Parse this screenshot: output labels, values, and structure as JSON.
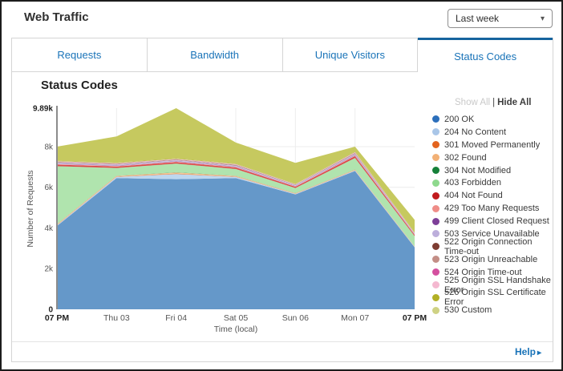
{
  "window": {
    "title": "Web Traffic"
  },
  "controls": {
    "time_range": {
      "value": "Last week"
    }
  },
  "tabs": [
    {
      "label": "Requests",
      "active": false
    },
    {
      "label": "Bandwidth",
      "active": false
    },
    {
      "label": "Unique Visitors",
      "active": false
    },
    {
      "label": "Status Codes",
      "active": true
    }
  ],
  "panel": {
    "title": "Status Codes"
  },
  "legend": {
    "show_all": "Show All",
    "divider": "|",
    "hide_all": "Hide All"
  },
  "footer": {
    "help_label": "Help",
    "arrow": "▸"
  },
  "chart_data": {
    "type": "area",
    "stacked": true,
    "title": "Status Codes",
    "xlabel": "Time (local)",
    "ylabel": "Number of Requests",
    "x_categories": [
      "07 PM",
      "Thu 03",
      "Fri 04",
      "Sat 05",
      "Sun 06",
      "Mon 07",
      "07 PM"
    ],
    "bold_x_indices": [
      0,
      6
    ],
    "y_ticks": [
      {
        "value": 0,
        "label": "0",
        "bold": true
      },
      {
        "value": 2000,
        "label": "2k",
        "bold": false
      },
      {
        "value": 4000,
        "label": "4k",
        "bold": false
      },
      {
        "value": 6000,
        "label": "6k",
        "bold": false
      },
      {
        "value": 8000,
        "label": "8k",
        "bold": false
      },
      {
        "value": 9890,
        "label": "9.89k",
        "bold": true
      }
    ],
    "ylim": [
      0,
      9890
    ],
    "grid": true,
    "legend_position": "right",
    "series": [
      {
        "name": "200 OK",
        "color": "#2c6fbb",
        "fill": "#6598c9",
        "values": [
          4100,
          6450,
          6400,
          6450,
          5650,
          6800,
          3050
        ]
      },
      {
        "name": "204 No Content",
        "color": "#a9c6e8",
        "fill": "#bdd7ef",
        "values": [
          30,
          60,
          250,
          60,
          30,
          30,
          20
        ]
      },
      {
        "name": "301 Moved Permanently",
        "color": "#e3641f",
        "fill": "#ea8b4e",
        "values": [
          20,
          20,
          30,
          20,
          15,
          15,
          10
        ]
      },
      {
        "name": "302 Found",
        "color": "#f2b176",
        "fill": "#f5c693",
        "values": [
          30,
          30,
          50,
          30,
          20,
          25,
          15
        ]
      },
      {
        "name": "304 Not Modified",
        "color": "#168039",
        "fill": "#5aa86f",
        "values": [
          10,
          10,
          15,
          10,
          10,
          10,
          5
        ]
      },
      {
        "name": "403 Forbidden",
        "color": "#8ed98d",
        "fill": "#b0e4ae",
        "values": [
          2850,
          380,
          420,
          330,
          240,
          560,
          500
        ]
      },
      {
        "name": "404 Not Found",
        "color": "#c11a1d",
        "fill": "#d9484a",
        "values": [
          70,
          70,
          70,
          70,
          60,
          90,
          60
        ]
      },
      {
        "name": "429 Too Many Requests",
        "color": "#ef8d88",
        "fill": "#f3aeaa",
        "values": [
          30,
          30,
          30,
          30,
          25,
          35,
          20
        ]
      },
      {
        "name": "499 Client Closed Request",
        "color": "#7d3f98",
        "fill": "#9a70b5",
        "values": [
          25,
          25,
          25,
          25,
          20,
          30,
          15
        ]
      },
      {
        "name": "503 Service Unavailable",
        "color": "#bcaedb",
        "fill": "#d0c5e5",
        "values": [
          50,
          45,
          45,
          45,
          35,
          50,
          25
        ]
      },
      {
        "name": "522 Origin Connection Time-out",
        "color": "#7d3c32",
        "fill": "#9a6a60",
        "values": [
          20,
          20,
          20,
          20,
          15,
          25,
          10
        ]
      },
      {
        "name": "523 Origin Unreachable",
        "color": "#c38e86",
        "fill": "#d5aba4",
        "values": [
          15,
          15,
          15,
          15,
          10,
          20,
          10
        ]
      },
      {
        "name": "524 Origin Time-out",
        "color": "#d4509f",
        "fill": "#de84bc",
        "values": [
          15,
          15,
          15,
          15,
          10,
          20,
          10
        ]
      },
      {
        "name": "525 Origin SSL Handshake Error",
        "color": "#f4b8d0",
        "fill": "#f8cfe0",
        "values": [
          15,
          15,
          15,
          15,
          10,
          20,
          10
        ]
      },
      {
        "name": "526 Origin SSL Certificate Error",
        "color": "#b2b025",
        "fill": "#b7b63a",
        "values": [
          20,
          20,
          25,
          20,
          15,
          25,
          15
        ]
      },
      {
        "name": "530 Custom",
        "color": "#cfd284",
        "fill": "#c6c95f",
        "values": [
          700,
          1295,
          2465,
          1045,
          1035,
          245,
          625
        ]
      }
    ]
  }
}
